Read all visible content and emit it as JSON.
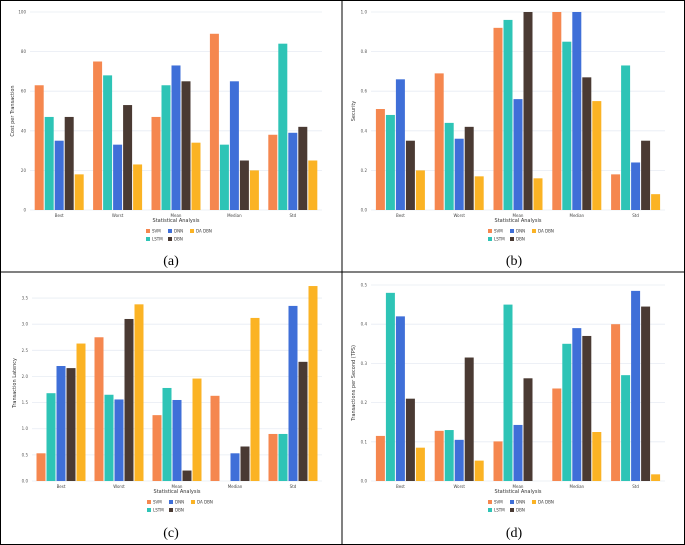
{
  "colors": {
    "SVM": "#f5874f",
    "LSTM": "#2ec4b6",
    "DNN": "#3f6fd8",
    "DBN": "#4a3a33",
    "DA DBN": "#fbb324",
    "grid": "#e7ecf3"
  },
  "captions": [
    "(a)",
    "(b)",
    "(c)",
    "(d)"
  ],
  "chart_data": [
    {
      "type": "bar",
      "title": "",
      "xlabel": "Statistical Analysis",
      "ylabel": "Cost per Transaction",
      "categories": [
        "Best",
        "Worst",
        "Mean",
        "Median",
        "Std"
      ],
      "ylim": [
        0,
        100
      ],
      "yticks": [
        0,
        20,
        40,
        60,
        80,
        100
      ],
      "ytick_labels": [
        "0",
        "20",
        "40",
        "60",
        "80",
        "100"
      ],
      "legend": {
        "placement": "bottom-center",
        "items": [
          "SVM",
          "DNN",
          "DA DBN",
          "LSTM",
          "DBN"
        ]
      },
      "series": [
        {
          "name": "SVM",
          "values": [
            63,
            75,
            47,
            89,
            38
          ]
        },
        {
          "name": "LSTM",
          "values": [
            47,
            68,
            63,
            33,
            84
          ]
        },
        {
          "name": "DNN",
          "values": [
            35,
            33,
            73,
            65,
            39
          ]
        },
        {
          "name": "DBN",
          "values": [
            47,
            53,
            65,
            25,
            42
          ]
        },
        {
          "name": "DA DBN",
          "values": [
            18,
            23,
            34,
            20,
            25
          ]
        }
      ]
    },
    {
      "type": "bar",
      "title": "",
      "xlabel": "Statistical Analysis",
      "ylabel": "Security",
      "categories": [
        "Best",
        "Worst",
        "Mean",
        "Median",
        "Std"
      ],
      "ylim": [
        0,
        1.0
      ],
      "yticks": [
        0,
        0.2,
        0.4,
        0.6,
        0.8,
        1.0
      ],
      "ytick_labels": [
        "0.0",
        "0.2",
        "0.4",
        "0.6",
        "0.8",
        "1.0"
      ],
      "legend": {
        "placement": "bottom-center",
        "items": [
          "SVM",
          "DNN",
          "DA DBN",
          "LSTM",
          "DBN"
        ]
      },
      "series": [
        {
          "name": "SVM",
          "values": [
            0.51,
            0.69,
            0.92,
            1.0,
            0.18
          ]
        },
        {
          "name": "LSTM",
          "values": [
            0.48,
            0.44,
            0.96,
            0.85,
            0.73
          ]
        },
        {
          "name": "DNN",
          "values": [
            0.66,
            0.36,
            0.56,
            1.0,
            0.24
          ]
        },
        {
          "name": "DBN",
          "values": [
            0.35,
            0.42,
            1.0,
            0.67,
            0.35
          ]
        },
        {
          "name": "DA DBN",
          "values": [
            0.2,
            0.17,
            0.16,
            0.55,
            0.08
          ]
        }
      ]
    },
    {
      "type": "bar",
      "title": "",
      "xlabel": "Statistical Analysis",
      "ylabel": "Transaction Latency",
      "categories": [
        "Best",
        "Worst",
        "Mean",
        "Median",
        "Std"
      ],
      "ylim": [
        0,
        3.75
      ],
      "yticks": [
        0,
        0.5,
        1.0,
        1.5,
        2.0,
        2.5,
        3.0,
        3.5
      ],
      "ytick_labels": [
        "0.0",
        "0.5",
        "1.0",
        "1.5",
        "2.0",
        "2.5",
        "3.0",
        "3.5"
      ],
      "legend": {
        "placement": "bottom-center",
        "items": [
          "SVM",
          "DNN",
          "DA DBN",
          "LSTM",
          "DBN"
        ]
      },
      "series": [
        {
          "name": "SVM",
          "values": [
            0.53,
            2.75,
            1.26,
            1.63,
            0.9
          ]
        },
        {
          "name": "LSTM",
          "values": [
            1.68,
            1.65,
            1.78,
            0.0,
            0.9
          ]
        },
        {
          "name": "DNN",
          "values": [
            2.2,
            1.56,
            1.55,
            0.53,
            3.35
          ]
        },
        {
          "name": "DBN",
          "values": [
            2.16,
            3.1,
            0.2,
            0.66,
            2.28
          ]
        },
        {
          "name": "DA DBN",
          "values": [
            2.63,
            3.38,
            1.96,
            3.12,
            3.73
          ]
        }
      ]
    },
    {
      "type": "bar",
      "title": "",
      "xlabel": "Statistical Analysis",
      "ylabel": "Transactions per Second (TPS)",
      "categories": [
        "Best",
        "Worst",
        "Mean",
        "Median",
        "Std"
      ],
      "ylim": [
        0,
        0.5
      ],
      "yticks": [
        0,
        0.1,
        0.2,
        0.3,
        0.4,
        0.5
      ],
      "ytick_labels": [
        "0.0",
        "0.1",
        "0.2",
        "0.3",
        "0.4",
        "0.5"
      ],
      "legend": {
        "placement": "bottom-center",
        "items": [
          "SVM",
          "DNN",
          "DA DBN",
          "LSTM",
          "DBN"
        ]
      },
      "series": [
        {
          "name": "SVM",
          "values": [
            0.115,
            0.128,
            0.101,
            0.236,
            0.4
          ]
        },
        {
          "name": "LSTM",
          "values": [
            0.48,
            0.13,
            0.45,
            0.35,
            0.27
          ]
        },
        {
          "name": "DNN",
          "values": [
            0.42,
            0.105,
            0.143,
            0.39,
            0.485
          ]
        },
        {
          "name": "DBN",
          "values": [
            0.21,
            0.315,
            0.262,
            0.37,
            0.445
          ]
        },
        {
          "name": "DA DBN",
          "values": [
            0.085,
            0.052,
            0.0,
            0.125,
            0.017
          ]
        }
      ]
    }
  ]
}
